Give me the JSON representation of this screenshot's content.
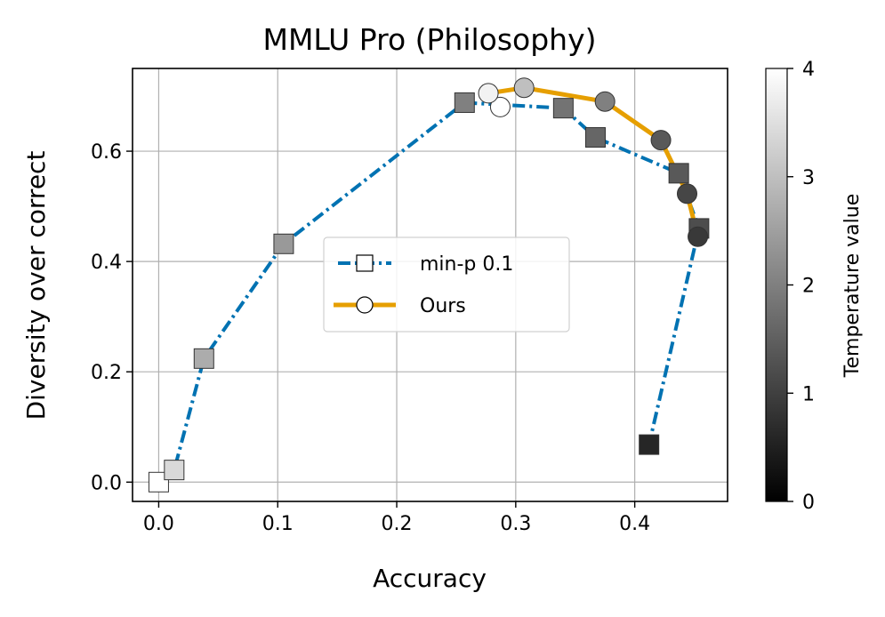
{
  "chart_data": {
    "type": "scatter",
    "title": "MMLU Pro (Philosophy)",
    "xlabel": "Accuracy",
    "ylabel": "Diversity over correct",
    "xlim": [
      -0.022,
      0.478
    ],
    "ylim": [
      -0.035,
      0.75
    ],
    "xticks": [
      "0.0",
      "0.1",
      "0.2",
      "0.3",
      "0.4"
    ],
    "yticks": [
      "0.0",
      "0.2",
      "0.4",
      "0.6"
    ],
    "grid": true,
    "legend_position": "center",
    "colorbar": {
      "label": "Temperature value",
      "range": [
        0,
        4
      ],
      "ticks": [
        "0",
        "1",
        "2",
        "3",
        "4"
      ],
      "colormap": "gray"
    },
    "series": [
      {
        "name": "min-p 0.1",
        "color": "#0072b2",
        "line_style": "dash-dot",
        "marker": "square",
        "x": [
          0.0,
          0.013,
          0.038,
          0.105,
          0.257,
          0.34,
          0.367,
          0.437,
          0.454,
          0.412
        ],
        "y": [
          0.0,
          0.022,
          0.224,
          0.432,
          0.688,
          0.678,
          0.625,
          0.56,
          0.46,
          0.068
        ],
        "temperature": [
          4.0,
          3.4,
          2.7,
          2.4,
          2.0,
          1.8,
          1.6,
          1.4,
          1.2,
          0.6
        ]
      },
      {
        "name": "Ours",
        "color": "#e69f00",
        "line_style": "solid",
        "marker": "circle",
        "x": [
          0.287,
          0.277,
          0.307,
          0.375,
          0.422,
          0.444,
          0.453
        ],
        "y": [
          0.68,
          0.705,
          0.715,
          0.69,
          0.62,
          0.523,
          0.445
        ],
        "temperature": [
          4.0,
          3.8,
          3.0,
          2.0,
          1.4,
          1.1,
          0.9
        ]
      }
    ]
  }
}
